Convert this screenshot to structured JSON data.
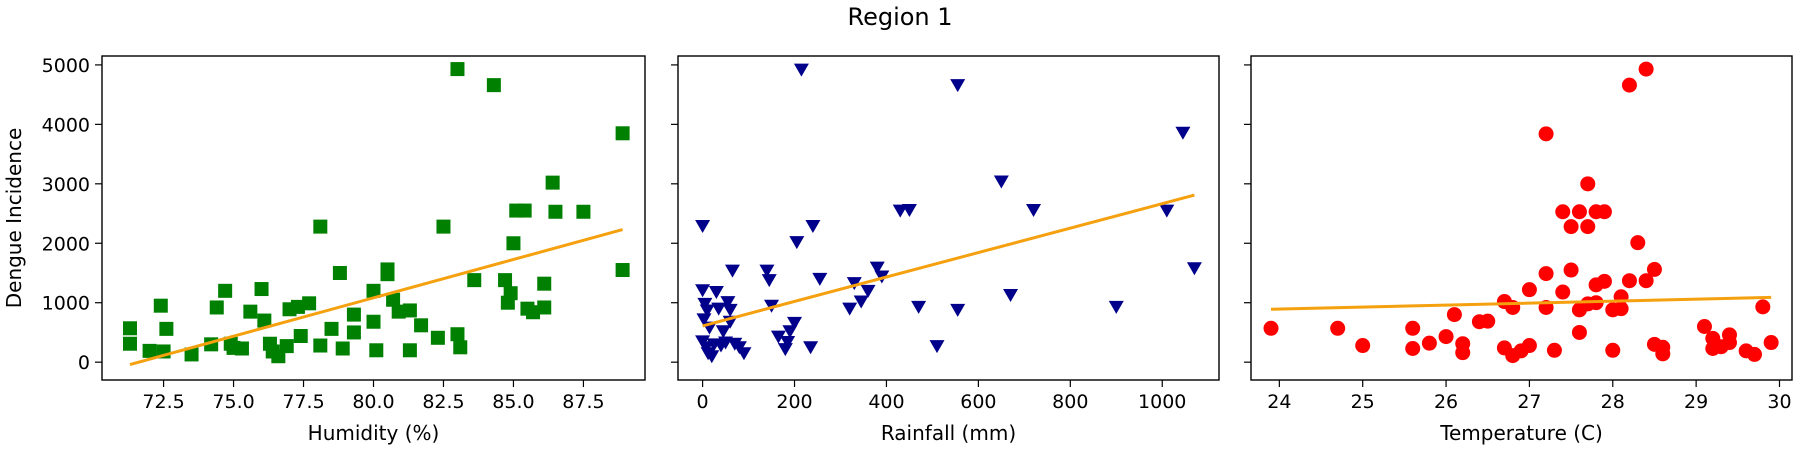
{
  "figure": {
    "title": "Region 1"
  },
  "colors": {
    "fit_line": "#f5a00f"
  },
  "chart_data": [
    {
      "type": "scatter",
      "xlabel": "Humidity (%)",
      "ylabel": "Dengue Incidence",
      "xlim": [
        70.3,
        89.7
      ],
      "ylim": [
        -300,
        5150
      ],
      "xticks": [
        72.5,
        75.0,
        77.5,
        80.0,
        82.5,
        85.0,
        87.5
      ],
      "xtick_labels": [
        "72.5",
        "75.0",
        "77.5",
        "80.0",
        "82.5",
        "85.0",
        "87.5"
      ],
      "yticks": [
        0,
        1000,
        2000,
        3000,
        4000,
        5000
      ],
      "ytick_labels": [
        "0",
        "1000",
        "2000",
        "3000",
        "4000",
        "5000"
      ],
      "grid": false,
      "series": [
        {
          "marker": "square",
          "color": "#008000",
          "points": [
            [
              71.3,
              570
            ],
            [
              71.3,
              310
            ],
            [
              72.0,
              190
            ],
            [
              72.4,
              950
            ],
            [
              72.6,
              560
            ],
            [
              72.5,
              180
            ],
            [
              73.5,
              130
            ],
            [
              74.2,
              300
            ],
            [
              74.4,
              920
            ],
            [
              74.7,
              1200
            ],
            [
              75.0,
              240
            ],
            [
              74.9,
              310
            ],
            [
              75.3,
              230
            ],
            [
              75.6,
              850
            ],
            [
              76.0,
              1230
            ],
            [
              76.1,
              700
            ],
            [
              76.3,
              310
            ],
            [
              76.4,
              180
            ],
            [
              76.6,
              100
            ],
            [
              76.9,
              270
            ],
            [
              77.0,
              890
            ],
            [
              77.3,
              930
            ],
            [
              77.4,
              440
            ],
            [
              77.7,
              990
            ],
            [
              78.1,
              2280
            ],
            [
              78.1,
              280
            ],
            [
              78.5,
              560
            ],
            [
              78.8,
              1500
            ],
            [
              78.9,
              230
            ],
            [
              79.3,
              800
            ],
            [
              79.3,
              500
            ],
            [
              80.0,
              1200
            ],
            [
              80.0,
              680
            ],
            [
              80.1,
              200
            ],
            [
              80.5,
              1560
            ],
            [
              80.5,
              1480
            ],
            [
              80.7,
              1050
            ],
            [
              80.9,
              850
            ],
            [
              81.3,
              870
            ],
            [
              81.3,
              200
            ],
            [
              81.7,
              620
            ],
            [
              82.3,
              410
            ],
            [
              82.5,
              2280
            ],
            [
              83.0,
              4930
            ],
            [
              83.0,
              470
            ],
            [
              83.1,
              250
            ],
            [
              83.6,
              1380
            ],
            [
              84.3,
              4660
            ],
            [
              84.7,
              1380
            ],
            [
              84.8,
              1000
            ],
            [
              84.9,
              1160
            ],
            [
              85.1,
              2550
            ],
            [
              85.0,
              2000
            ],
            [
              85.4,
              2550
            ],
            [
              85.5,
              900
            ],
            [
              85.7,
              840
            ],
            [
              86.1,
              920
            ],
            [
              86.1,
              1320
            ],
            [
              86.4,
              3020
            ],
            [
              86.5,
              2530
            ],
            [
              87.5,
              2530
            ],
            [
              88.9,
              3850
            ],
            [
              88.9,
              1550
            ]
          ]
        }
      ],
      "fit_line": {
        "x": [
          71.3,
          88.9
        ],
        "y": [
          -40,
          2230
        ]
      }
    },
    {
      "type": "scatter",
      "xlabel": "Rainfall (mm)",
      "ylabel": "",
      "xlim": [
        -53.5,
        1123.5
      ],
      "ylim": [
        -300,
        5150
      ],
      "xticks": [
        0,
        200,
        400,
        600,
        800,
        1000
      ],
      "xtick_labels": [
        "0",
        "200",
        "400",
        "600",
        "800",
        "1000"
      ],
      "yticks": [
        0,
        1000,
        2000,
        3000,
        4000,
        5000
      ],
      "ytick_labels": [],
      "grid": false,
      "series": [
        {
          "marker": "triangle-down",
          "color": "#00008b",
          "points": [
            [
              0,
              2290
            ],
            [
              0,
              1210
            ],
            [
              5,
              980
            ],
            [
              10,
              870
            ],
            [
              3,
              720
            ],
            [
              15,
              580
            ],
            [
              0,
              350
            ],
            [
              8,
              250
            ],
            [
              12,
              150
            ],
            [
              20,
              100
            ],
            [
              25,
              300
            ],
            [
              30,
              1180
            ],
            [
              35,
              900
            ],
            [
              40,
              280
            ],
            [
              50,
              330
            ],
            [
              55,
              1010
            ],
            [
              60,
              880
            ],
            [
              65,
              1540
            ],
            [
              70,
              310
            ],
            [
              80,
              250
            ],
            [
              90,
              150
            ],
            [
              60,
              680
            ],
            [
              45,
              520
            ],
            [
              140,
              1540
            ],
            [
              145,
              1380
            ],
            [
              150,
              950
            ],
            [
              165,
              430
            ],
            [
              180,
              220
            ],
            [
              185,
              340
            ],
            [
              190,
              520
            ],
            [
              200,
              660
            ],
            [
              205,
              2020
            ],
            [
              215,
              4920
            ],
            [
              240,
              2290
            ],
            [
              255,
              1400
            ],
            [
              235,
              250
            ],
            [
              320,
              900
            ],
            [
              330,
              1330
            ],
            [
              345,
              1020
            ],
            [
              360,
              1200
            ],
            [
              380,
              1590
            ],
            [
              390,
              1440
            ],
            [
              430,
              2550
            ],
            [
              450,
              2560
            ],
            [
              470,
              930
            ],
            [
              510,
              270
            ],
            [
              555,
              4660
            ],
            [
              555,
              880
            ],
            [
              650,
              3040
            ],
            [
              670,
              1130
            ],
            [
              720,
              2560
            ],
            [
              900,
              930
            ],
            [
              1010,
              2550
            ],
            [
              1045,
              3860
            ],
            [
              1070,
              1580
            ]
          ]
        }
      ],
      "fit_line": {
        "x": [
          0,
          1070
        ],
        "y": [
          610,
          2810
        ]
      }
    },
    {
      "type": "scatter",
      "xlabel": "Temperature (C)",
      "ylabel": "",
      "xlim": [
        23.66,
        30.15
      ],
      "ylim": [
        -300,
        5150
      ],
      "xticks": [
        24,
        25,
        26,
        27,
        28,
        29,
        30
      ],
      "xtick_labels": [
        "24",
        "25",
        "26",
        "27",
        "28",
        "29",
        "30"
      ],
      "yticks": [
        0,
        1000,
        2000,
        3000,
        4000,
        5000
      ],
      "ytick_labels": [],
      "grid": false,
      "series": [
        {
          "marker": "circle",
          "color": "#ff0000",
          "points": [
            [
              23.9,
              570
            ],
            [
              24.7,
              570
            ],
            [
              25.0,
              280
            ],
            [
              25.6,
              570
            ],
            [
              25.6,
              230
            ],
            [
              25.8,
              320
            ],
            [
              26.0,
              430
            ],
            [
              26.1,
              800
            ],
            [
              26.2,
              310
            ],
            [
              26.2,
              160
            ],
            [
              26.4,
              680
            ],
            [
              26.5,
              690
            ],
            [
              26.7,
              1020
            ],
            [
              26.7,
              240
            ],
            [
              26.8,
              920
            ],
            [
              26.8,
              110
            ],
            [
              26.9,
              190
            ],
            [
              27.0,
              280
            ],
            [
              27.0,
              1220
            ],
            [
              27.2,
              3840
            ],
            [
              27.2,
              1490
            ],
            [
              27.2,
              920
            ],
            [
              27.3,
              200
            ],
            [
              27.4,
              2530
            ],
            [
              27.4,
              1180
            ],
            [
              27.5,
              2280
            ],
            [
              27.5,
              1550
            ],
            [
              27.6,
              2530
            ],
            [
              27.6,
              880
            ],
            [
              27.6,
              500
            ],
            [
              27.7,
              3000
            ],
            [
              27.7,
              2280
            ],
            [
              27.7,
              980
            ],
            [
              27.8,
              2530
            ],
            [
              27.8,
              1300
            ],
            [
              27.8,
              1000
            ],
            [
              27.9,
              2530
            ],
            [
              27.9,
              1360
            ],
            [
              28.0,
              880
            ],
            [
              28.0,
              200
            ],
            [
              28.1,
              1100
            ],
            [
              28.1,
              900
            ],
            [
              28.2,
              4660
            ],
            [
              28.2,
              1370
            ],
            [
              28.3,
              2010
            ],
            [
              28.4,
              4930
            ],
            [
              28.4,
              1370
            ],
            [
              28.5,
              1560
            ],
            [
              28.5,
              300
            ],
            [
              28.6,
              140
            ],
            [
              28.6,
              250
            ],
            [
              29.1,
              600
            ],
            [
              29.2,
              400
            ],
            [
              29.2,
              230
            ],
            [
              29.3,
              260
            ],
            [
              29.4,
              460
            ],
            [
              29.4,
              330
            ],
            [
              29.6,
              190
            ],
            [
              29.7,
              130
            ],
            [
              29.8,
              930
            ],
            [
              29.9,
              330
            ]
          ]
        }
      ],
      "fit_line": {
        "x": [
          23.9,
          29.9
        ],
        "y": [
          890,
          1090
        ]
      }
    }
  ]
}
